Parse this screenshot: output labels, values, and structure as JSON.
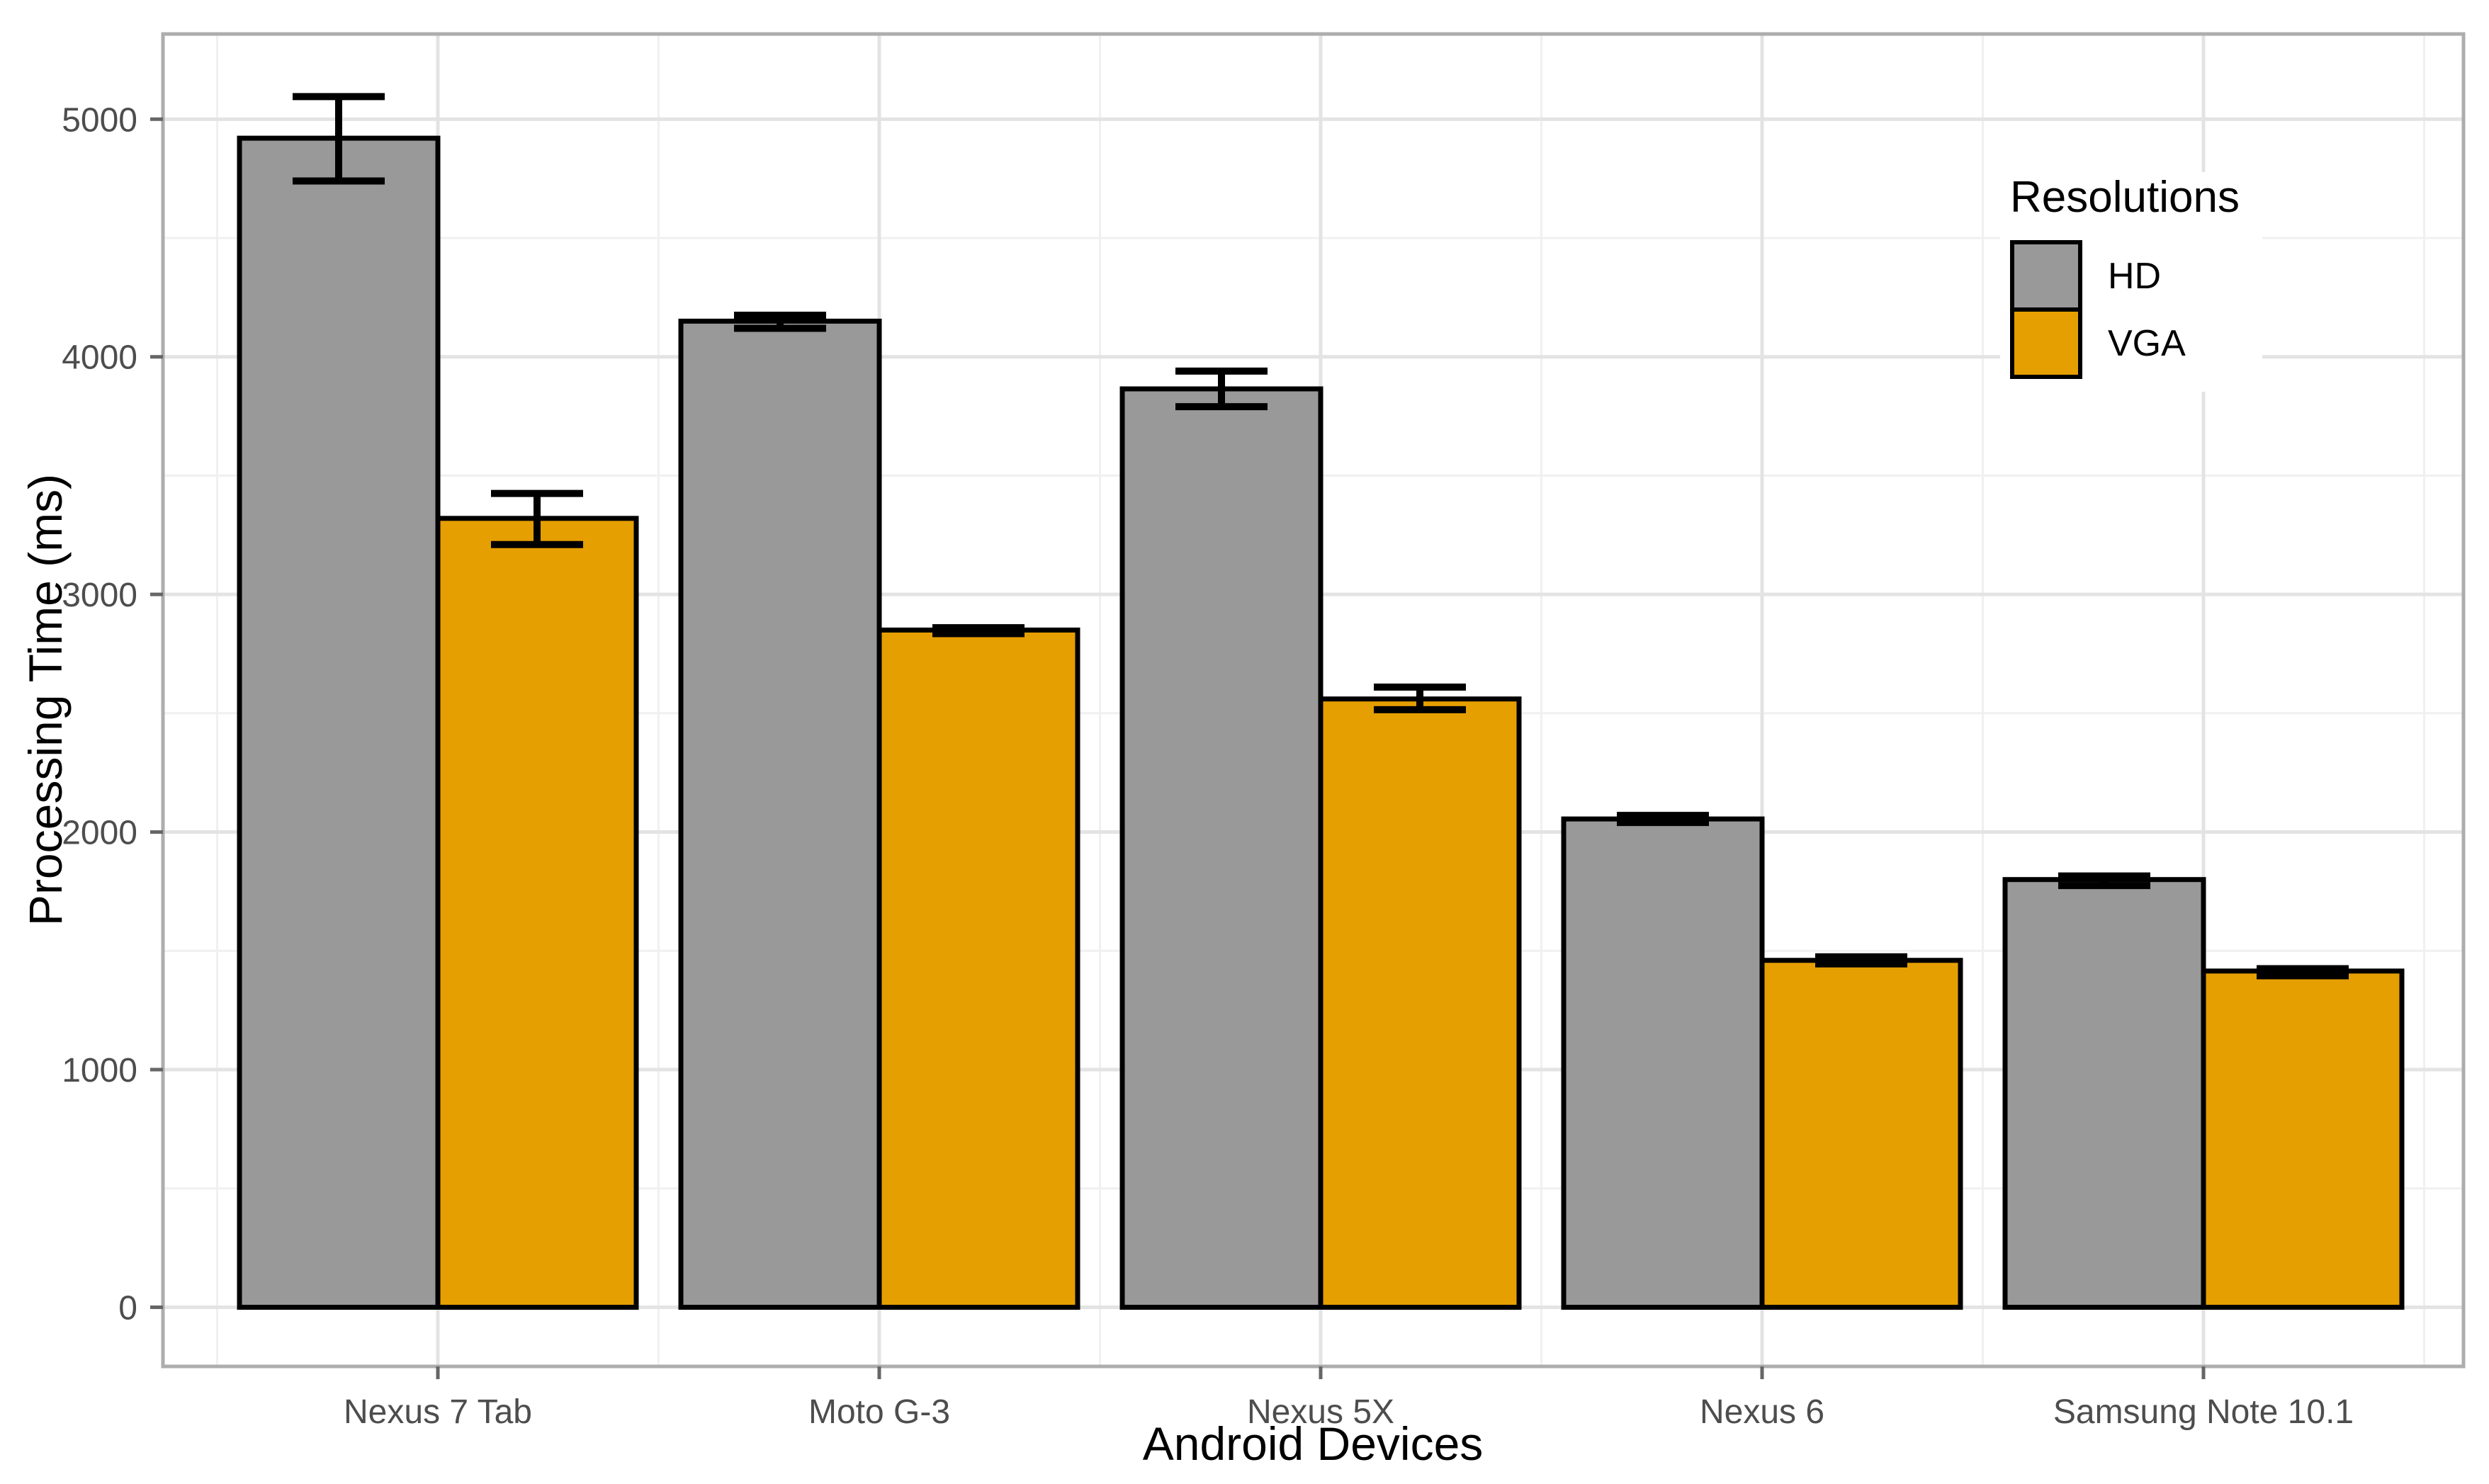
{
  "chart_data": {
    "type": "bar",
    "title": "",
    "xlabel": "Android Devices",
    "ylabel": "Processing Time (ms)",
    "categories": [
      "Nexus 7 Tab",
      "Moto G-3",
      "Nexus 5X",
      "Nexus 6",
      "Samsung Note 10.1"
    ],
    "series": [
      {
        "name": "HD",
        "color": "#999999",
        "values": [
          4920,
          4150,
          3865,
          2055,
          1800
        ],
        "error_high": [
          5095,
          4175,
          3940,
          2070,
          1815
        ],
        "error_low": [
          4740,
          4120,
          3790,
          2040,
          1775
        ]
      },
      {
        "name": "VGA",
        "color": "#E69F00",
        "values": [
          3320,
          2850,
          2560,
          1460,
          1415
        ],
        "error_high": [
          3425,
          2860,
          2610,
          1475,
          1425
        ],
        "error_low": [
          3210,
          2835,
          2515,
          1445,
          1395
        ]
      }
    ],
    "ylim": [
      0,
      5000
    ],
    "y_major_ticks": [
      0,
      1000,
      2000,
      3000,
      4000,
      5000
    ],
    "y_tick_labels": [
      "0",
      "1000",
      "2000",
      "3000",
      "4000",
      "5000"
    ],
    "y_minor_step": 500,
    "grid": "on",
    "legend_title": "Resolutions",
    "legend_position": "inside-top-right",
    "bar_outline_color": "#000000",
    "errorbar_color": "#000000",
    "panel_border_color": "#adadad",
    "major_grid_color": "#e3e3e3",
    "minor_grid_color": "#f0f0f0",
    "tick_color": "#666666",
    "tick_label_color": "#4d4d4d"
  }
}
